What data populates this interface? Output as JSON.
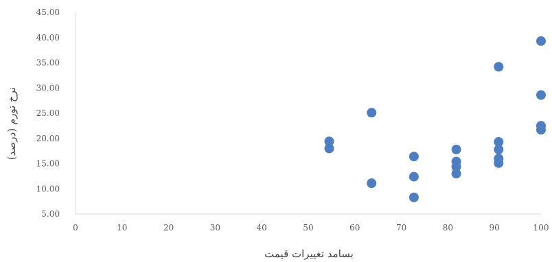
{
  "chart_data": {
    "type": "scatter",
    "xlabel": "بسامد تغییرات قیمت",
    "ylabel": "نرخ تورم (درصد)",
    "xlim": [
      0,
      100
    ],
    "ylim": [
      5,
      45
    ],
    "xticks": [
      "0",
      "10",
      "20",
      "30",
      "40",
      "50",
      "60",
      "70",
      "80",
      "90",
      "100"
    ],
    "yticks": [
      "5.00",
      "10.00",
      "15.00",
      "20.00",
      "25.00",
      "30.00",
      "35.00",
      "40.00",
      "45.00"
    ],
    "grid": false,
    "marker_color": "#4E7EC0",
    "points": [
      {
        "x": 54.5,
        "y": 19.4
      },
      {
        "x": 54.5,
        "y": 18.0
      },
      {
        "x": 63.6,
        "y": 25.1
      },
      {
        "x": 63.6,
        "y": 11.1
      },
      {
        "x": 72.7,
        "y": 16.4
      },
      {
        "x": 72.7,
        "y": 12.4
      },
      {
        "x": 72.7,
        "y": 8.3
      },
      {
        "x": 81.8,
        "y": 17.8
      },
      {
        "x": 81.8,
        "y": 15.4
      },
      {
        "x": 81.8,
        "y": 14.4
      },
      {
        "x": 81.8,
        "y": 13.0
      },
      {
        "x": 90.9,
        "y": 34.2
      },
      {
        "x": 90.9,
        "y": 19.3
      },
      {
        "x": 90.9,
        "y": 17.8
      },
      {
        "x": 90.9,
        "y": 16.0
      },
      {
        "x": 90.9,
        "y": 15.1
      },
      {
        "x": 100,
        "y": 39.3
      },
      {
        "x": 100,
        "y": 28.6
      },
      {
        "x": 100,
        "y": 22.5
      },
      {
        "x": 100,
        "y": 21.7
      }
    ]
  }
}
